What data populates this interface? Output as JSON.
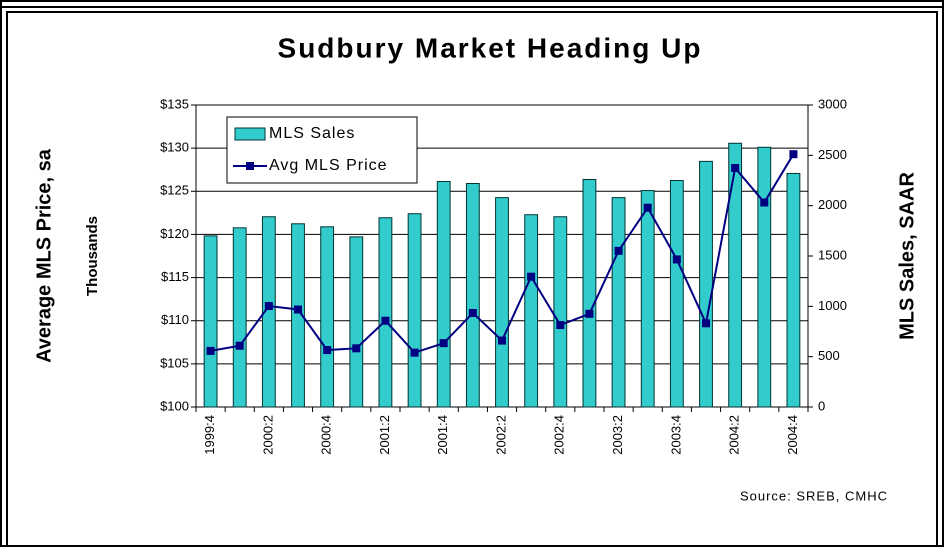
{
  "chart_data": {
    "type": "bar_line",
    "title": "Sudbury Market Heading Up",
    "y_label": "Average MLS Price, sa",
    "y_sublabel": "Thousands",
    "y2_label": "MLS Sales, SAAR",
    "source": "Source: SREB, CMHC",
    "categories": [
      "1999:4",
      null,
      "2000:2",
      null,
      "2000:4",
      null,
      "2001:2",
      null,
      "2001:4",
      null,
      "2002:2",
      null,
      "2002:4",
      null,
      "2003:2",
      null,
      "2003:4",
      null,
      "2004:2",
      null,
      "2004:4"
    ],
    "series": [
      {
        "name": "MLS Sales",
        "type": "bar",
        "axis": "y2",
        "color": "#33cccc",
        "values": [
          1700,
          1780,
          1890,
          1820,
          1790,
          1690,
          1880,
          1920,
          2240,
          2220,
          2080,
          1910,
          1890,
          2260,
          2080,
          2150,
          2250,
          2440,
          2620,
          2580,
          2320
        ]
      },
      {
        "name": "Avg MLS Price",
        "type": "line",
        "axis": "y",
        "color": "#000080",
        "values": [
          106.5,
          107.1,
          111.7,
          111.3,
          106.6,
          106.8,
          110.0,
          106.3,
          107.4,
          110.9,
          107.7,
          115.1,
          109.5,
          110.8,
          118.1,
          123.1,
          117.1,
          109.7,
          127.7,
          123.7,
          129.3
        ]
      }
    ],
    "ylim": [
      100,
      135
    ],
    "yticks": [
      {
        "value": 100,
        "label": "$100"
      },
      {
        "value": 105,
        "label": "$105"
      },
      {
        "value": 110,
        "label": "$110"
      },
      {
        "value": 115,
        "label": "$115"
      },
      {
        "value": 120,
        "label": "$120"
      },
      {
        "value": 125,
        "label": "$125"
      },
      {
        "value": 130,
        "label": "$130"
      },
      {
        "value": 135,
        "label": "$135"
      }
    ],
    "y2lim": [
      0,
      3000
    ],
    "y2ticks": [
      0,
      500,
      1000,
      1500,
      2000,
      2500,
      3000
    ],
    "grid": true,
    "legend": "top-left"
  }
}
